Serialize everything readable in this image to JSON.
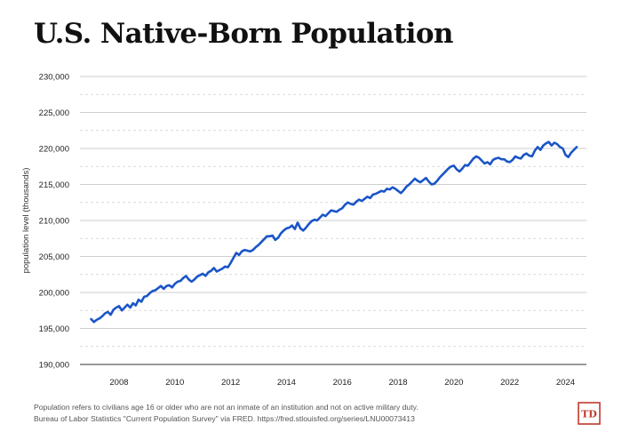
{
  "chart_data": {
    "type": "line",
    "title": "U.S. Native-Born Population",
    "xlabel": "",
    "ylabel": "population level (thousands)",
    "ylim": [
      190000,
      230000
    ],
    "xlim": [
      2006.6,
      2024.75
    ],
    "yticks": [
      190000,
      195000,
      200000,
      205000,
      210000,
      215000,
      220000,
      225000,
      230000
    ],
    "ytick_labels": [
      "190,000",
      "195,000",
      "200,000",
      "205,000",
      "210,000",
      "215,000",
      "220,000",
      "225,000",
      "230,000"
    ],
    "xticks": [
      2008,
      2010,
      2012,
      2014,
      2016,
      2018,
      2020,
      2022,
      2024
    ],
    "xtick_labels": [
      "2008",
      "2010",
      "2012",
      "2014",
      "2016",
      "2018",
      "2020",
      "2022",
      "2024"
    ],
    "grid": true,
    "series": [
      {
        "name": "Native-born population",
        "color": "#1a55c8",
        "x": [
          2007.0,
          2007.1,
          2007.2,
          2007.3,
          2007.4,
          2007.5,
          2007.6,
          2007.7,
          2007.8,
          2007.9,
          2008.0,
          2008.1,
          2008.2,
          2008.3,
          2008.4,
          2008.5,
          2008.6,
          2008.7,
          2008.8,
          2008.9,
          2009.0,
          2009.1,
          2009.2,
          2009.3,
          2009.4,
          2009.5,
          2009.6,
          2009.7,
          2009.8,
          2009.9,
          2010.0,
          2010.1,
          2010.2,
          2010.3,
          2010.4,
          2010.5,
          2010.6,
          2010.7,
          2010.8,
          2010.9,
          2011.0,
          2011.1,
          2011.2,
          2011.3,
          2011.4,
          2011.5,
          2011.6,
          2011.7,
          2011.8,
          2011.9,
          2012.0,
          2012.1,
          2012.2,
          2012.3,
          2012.4,
          2012.5,
          2012.6,
          2012.7,
          2012.8,
          2012.9,
          2013.0,
          2013.1,
          2013.2,
          2013.3,
          2013.4,
          2013.5,
          2013.6,
          2013.7,
          2013.8,
          2013.9,
          2014.0,
          2014.1,
          2014.2,
          2014.3,
          2014.4,
          2014.5,
          2014.6,
          2014.7,
          2014.8,
          2014.9,
          2015.0,
          2015.1,
          2015.2,
          2015.3,
          2015.4,
          2015.5,
          2015.6,
          2015.7,
          2015.8,
          2015.9,
          2016.0,
          2016.1,
          2016.2,
          2016.3,
          2016.4,
          2016.5,
          2016.6,
          2016.7,
          2016.8,
          2016.9,
          2017.0,
          2017.1,
          2017.2,
          2017.3,
          2017.4,
          2017.5,
          2017.6,
          2017.7,
          2017.8,
          2017.9,
          2018.0,
          2018.1,
          2018.2,
          2018.3,
          2018.4,
          2018.5,
          2018.6,
          2018.7,
          2018.8,
          2018.9,
          2019.0,
          2019.1,
          2019.2,
          2019.3,
          2019.4,
          2019.5,
          2019.6,
          2019.7,
          2019.8,
          2019.9,
          2020.0,
          2020.1,
          2020.2,
          2020.3,
          2020.4,
          2020.5,
          2020.6,
          2020.7,
          2020.8,
          2020.9,
          2021.0,
          2021.1,
          2021.2,
          2021.3,
          2021.4,
          2021.5,
          2021.6,
          2021.7,
          2021.8,
          2021.9,
          2022.0,
          2022.1,
          2022.2,
          2022.3,
          2022.4,
          2022.5,
          2022.6,
          2022.7,
          2022.8,
          2022.9,
          2023.0,
          2023.1,
          2023.2,
          2023.3,
          2023.4,
          2023.5,
          2023.6,
          2023.7,
          2023.8,
          2023.9,
          2024.0,
          2024.1,
          2024.2,
          2024.3,
          2024.4
        ],
        "y": [
          196300,
          195900,
          196200,
          196400,
          196700,
          197100,
          197300,
          196900,
          197600,
          197900,
          198100,
          197500,
          197900,
          198300,
          197900,
          198500,
          198200,
          199000,
          198700,
          199400,
          199500,
          199900,
          200200,
          200300,
          200600,
          200900,
          200500,
          200900,
          201000,
          200700,
          201200,
          201500,
          201600,
          202000,
          202300,
          201800,
          201500,
          201800,
          202200,
          202400,
          202600,
          202300,
          202800,
          203000,
          203400,
          202900,
          203100,
          203300,
          203600,
          203500,
          204100,
          204800,
          205500,
          205200,
          205700,
          205900,
          205800,
          205700,
          205900,
          206300,
          206600,
          207000,
          207400,
          207800,
          207800,
          207900,
          207300,
          207600,
          208200,
          208600,
          208900,
          209000,
          209300,
          208800,
          209700,
          208900,
          208600,
          209000,
          209500,
          209900,
          210100,
          210000,
          210400,
          210800,
          210600,
          211000,
          211400,
          211300,
          211200,
          211500,
          211700,
          212200,
          212500,
          212300,
          212200,
          212600,
          212900,
          212700,
          213000,
          213300,
          213100,
          213600,
          213700,
          213900,
          214100,
          214000,
          214400,
          214300,
          214600,
          214400,
          214100,
          213800,
          214200,
          214700,
          215000,
          215400,
          215800,
          215500,
          215300,
          215600,
          215900,
          215400,
          215000,
          215100,
          215500,
          216000,
          216400,
          216800,
          217200,
          217500,
          217600,
          217100,
          216800,
          217200,
          217700,
          217600,
          218100,
          218600,
          218900,
          218700,
          218300,
          217900,
          218100,
          217800,
          218400,
          218600,
          218700,
          218500,
          218500,
          218200,
          218100,
          218400,
          218900,
          218700,
          218600,
          219100,
          219300,
          219000,
          218900,
          219700,
          220200,
          219800,
          220400,
          220700,
          220900,
          220400,
          220800,
          220600,
          220200,
          220000,
          219100,
          218800,
          219400,
          219800,
          220200
        ]
      }
    ]
  },
  "footnote": {
    "line1": "Population refers to civilians age 16 or older who are not an inmate of an institution and not on active military duty.",
    "line2": "Bureau of Labor Statistics \"Current Population Survey\" via FRED. https://fred.stlouisfed.org/series/LNU00073413"
  },
  "logo_text": "TD",
  "logo_color": "#c0392b"
}
